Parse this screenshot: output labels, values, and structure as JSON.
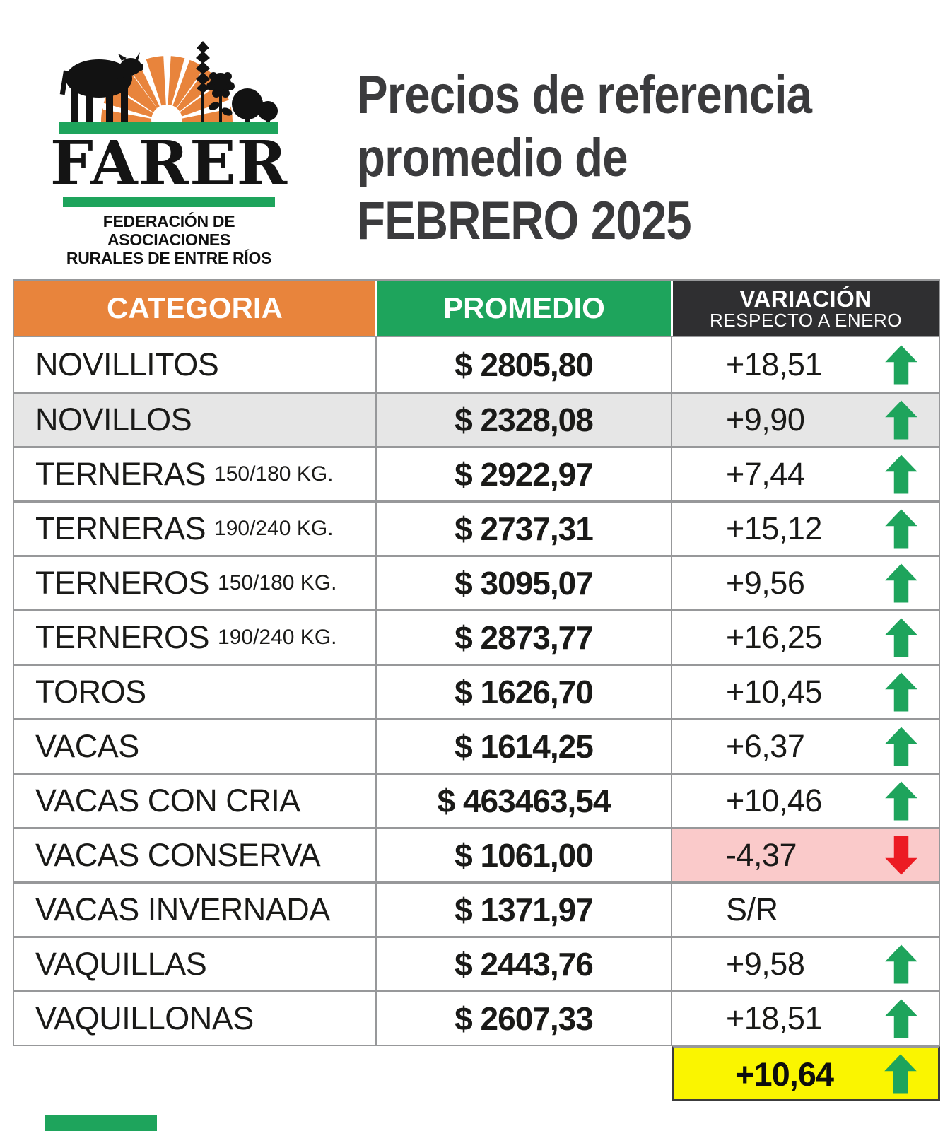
{
  "logo": {
    "brand": "FARER",
    "subtitle_line1": "FEDERACIÓN DE ASOCIACIONES",
    "subtitle_line2": "RURALES DE ENTRE RÍOS"
  },
  "title": {
    "line1": "Precios de referencia",
    "line2": "promedio de",
    "line3": "FEBRERO 2025"
  },
  "table": {
    "headers": {
      "category": "CATEGORIA",
      "average": "PROMEDIO",
      "variation_line1": "VARIACIÓN",
      "variation_line2": "RESPECTO A ENERO"
    },
    "rows": [
      {
        "category": "NOVILLITOS",
        "weight": "",
        "average": "$ 2805,80",
        "variation": "+18,51",
        "direction": "up",
        "row_bg": "white",
        "variation_bg": "white"
      },
      {
        "category": "NOVILLOS",
        "weight": "",
        "average": "$ 2328,08",
        "variation": "+9,90",
        "direction": "up",
        "row_bg": "gray",
        "variation_bg": "white"
      },
      {
        "category": "TERNERAS",
        "weight": "150/180 KG.",
        "average": "$ 2922,97",
        "variation": "+7,44",
        "direction": "up",
        "row_bg": "white",
        "variation_bg": "white"
      },
      {
        "category": "TERNERAS",
        "weight": "190/240 KG.",
        "average": "$ 2737,31",
        "variation": "+15,12",
        "direction": "up",
        "row_bg": "white",
        "variation_bg": "white"
      },
      {
        "category": "TERNEROS",
        "weight": "150/180 KG.",
        "average": "$ 3095,07",
        "variation": "+9,56",
        "direction": "up",
        "row_bg": "white",
        "variation_bg": "white"
      },
      {
        "category": "TERNEROS",
        "weight": "190/240 KG.",
        "average": "$ 2873,77",
        "variation": "+16,25",
        "direction": "up",
        "row_bg": "white",
        "variation_bg": "white"
      },
      {
        "category": "TOROS",
        "weight": "",
        "average": "$ 1626,70",
        "variation": "+10,45",
        "direction": "up",
        "row_bg": "white",
        "variation_bg": "white"
      },
      {
        "category": "VACAS",
        "weight": "",
        "average": "$ 1614,25",
        "variation": "+6,37",
        "direction": "up",
        "row_bg": "white",
        "variation_bg": "white"
      },
      {
        "category": "VACAS CON CRIA",
        "weight": "",
        "average": "$ 463463,54",
        "variation": "+10,46",
        "direction": "up",
        "row_bg": "white",
        "variation_bg": "white"
      },
      {
        "category": "VACAS CONSERVA",
        "weight": "",
        "average": "$ 1061,00",
        "variation": "-4,37",
        "direction": "down",
        "row_bg": "white",
        "variation_bg": "pink"
      },
      {
        "category": "VACAS INVERNADA",
        "weight": "",
        "average": "$ 1371,97",
        "variation": "S/R",
        "direction": "none",
        "row_bg": "white",
        "variation_bg": "white"
      },
      {
        "category": "VAQUILLAS",
        "weight": "",
        "average": "$ 2443,76",
        "variation": "+9,58",
        "direction": "up",
        "row_bg": "white",
        "variation_bg": "white"
      },
      {
        "category": "VAQUILLONAS",
        "weight": "",
        "average": "$ 2607,33",
        "variation": "+18,51",
        "direction": "up",
        "row_bg": "white",
        "variation_bg": "white"
      }
    ],
    "summary": {
      "variation": "+10,64",
      "direction": "up",
      "bg": "yellow"
    }
  },
  "icons": {
    "up": "up-arrow-icon",
    "down": "down-arrow-icon"
  },
  "colors": {
    "orange": "#E8843C",
    "green": "#1EA45C",
    "dark": "#2F2F31",
    "gray_row": "#E6E6E6",
    "pink": "#FACACA",
    "yellow": "#FAF500",
    "red": "#EC1B23",
    "border": "#97989A",
    "ink": "#1A1A18",
    "title": "#3B3B3D"
  }
}
